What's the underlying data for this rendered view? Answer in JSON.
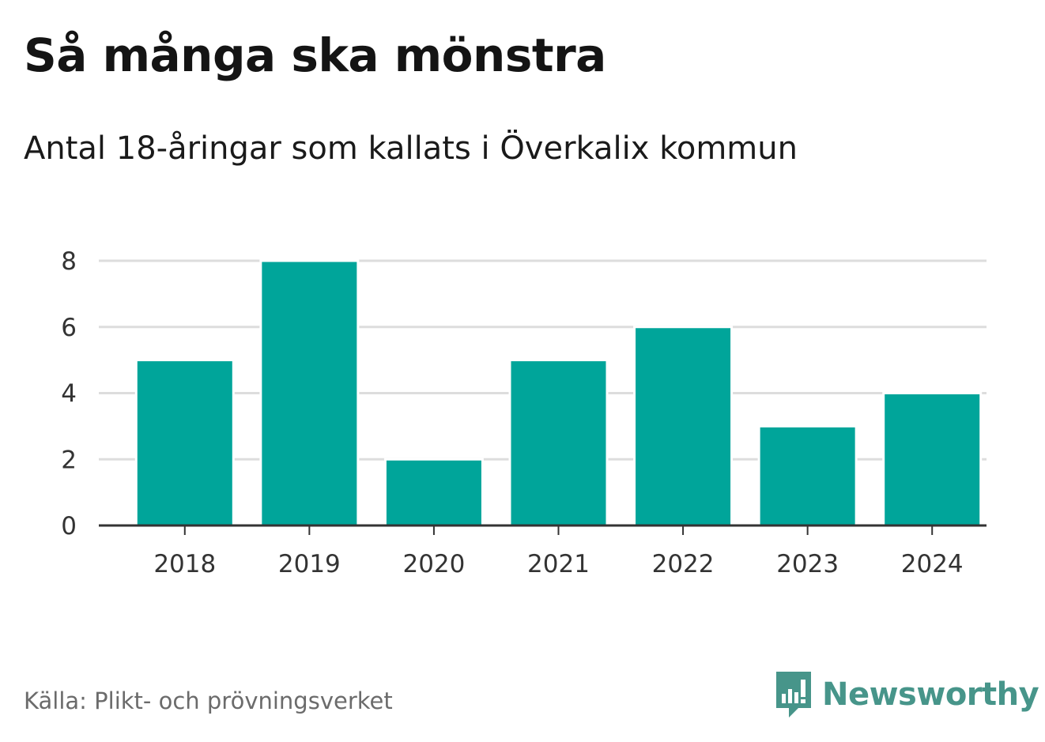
{
  "title": "Så många ska mönstra",
  "subtitle": "Antal 18-åringar som kallats i Överkalix kommun",
  "source": "Källa: Plikt- och prövningsverket",
  "logo": {
    "text": "Newsworthy",
    "icon": "newsworthy-logo-icon"
  },
  "colors": {
    "bar": "#00a59a",
    "grid": "#dddddd",
    "axis": "#333333",
    "logo": "#47958a"
  },
  "chart_data": {
    "type": "bar",
    "categories": [
      "2018",
      "2019",
      "2020",
      "2021",
      "2022",
      "2023",
      "2024"
    ],
    "values": [
      5,
      8,
      2,
      5,
      6,
      3,
      4
    ],
    "ylim": [
      0,
      8
    ],
    "yticks": [
      0,
      2,
      4,
      6,
      8
    ],
    "grid": true,
    "xlabel": "",
    "ylabel": ""
  }
}
